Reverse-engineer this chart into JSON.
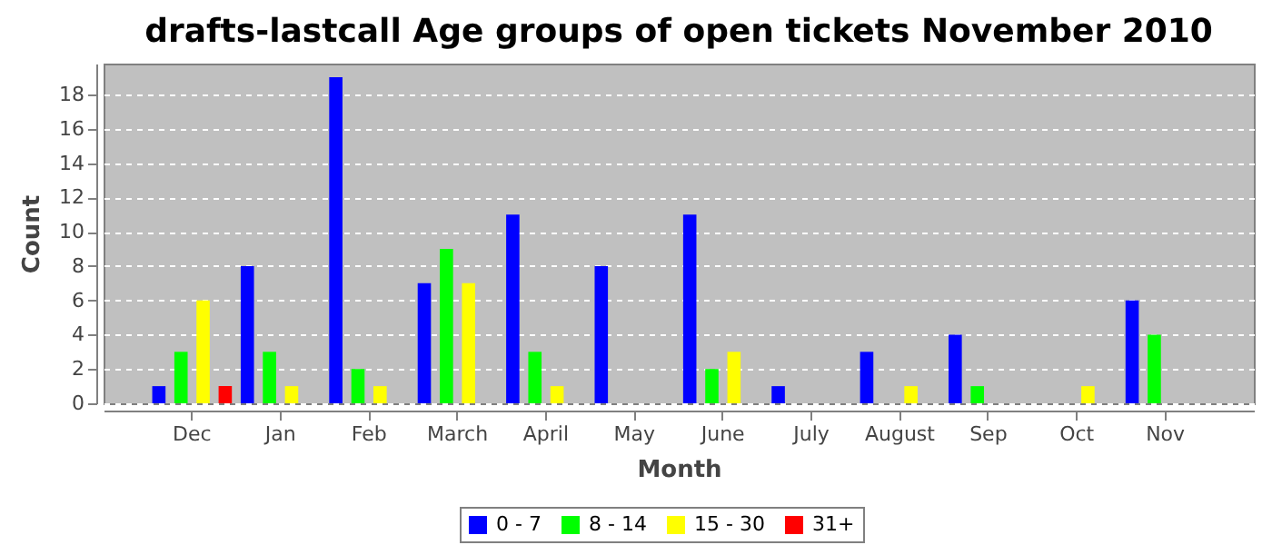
{
  "chart_data": {
    "type": "bar",
    "title": "drafts-lastcall Age groups of open tickets November 2010",
    "xlabel": "Month",
    "ylabel": "Count",
    "categories": [
      "Dec",
      "Jan",
      "Feb",
      "March",
      "April",
      "May",
      "June",
      "July",
      "August",
      "Sep",
      "Oct",
      "Nov"
    ],
    "series": [
      {
        "name": "0 - 7",
        "color": "#0000ff",
        "values": [
          1,
          8,
          19,
          7,
          11,
          8,
          11,
          1,
          3,
          4,
          0,
          6
        ]
      },
      {
        "name": "8 - 14",
        "color": "#00ff00",
        "values": [
          3,
          3,
          2,
          9,
          3,
          0,
          2,
          0,
          0,
          1,
          0,
          4
        ]
      },
      {
        "name": "15 - 30",
        "color": "#ffff00",
        "values": [
          6,
          1,
          1,
          7,
          1,
          0,
          3,
          0,
          1,
          0,
          1,
          0
        ]
      },
      {
        "name": "31+",
        "color": "#ff0000",
        "values": [
          1,
          0,
          0,
          0,
          0,
          0,
          0,
          0,
          0,
          0,
          0,
          0
        ]
      }
    ],
    "ylim": [
      0,
      19.8
    ],
    "yticks": [
      0,
      2,
      4,
      6,
      8,
      10,
      12,
      14,
      16,
      18
    ],
    "grid": "y",
    "legend": "bottom"
  }
}
